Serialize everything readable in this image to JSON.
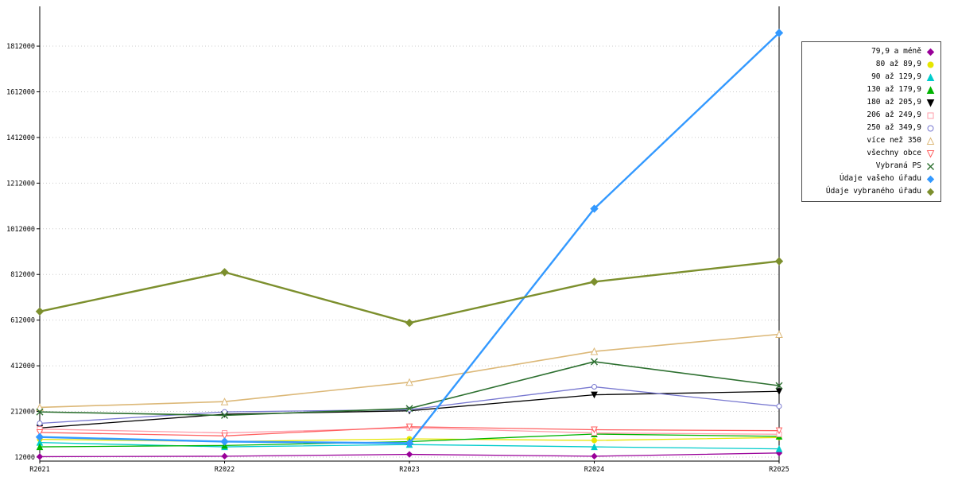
{
  "chart_data": {
    "type": "line",
    "title": "",
    "xlabel": "",
    "ylabel": "",
    "categories": [
      "R2021",
      "R2022",
      "R2023",
      "R2024",
      "R2025"
    ],
    "yticks": [
      12000,
      212000,
      412000,
      612000,
      812000,
      1012000,
      1212000,
      1412000,
      1612000,
      1812000
    ],
    "ylim": [
      12000,
      1986000
    ],
    "grid": "dotted-horizontal",
    "legend_position": "right",
    "series": [
      {
        "name": "79,9 a méně",
        "color": "#990099",
        "marker": "diamond",
        "fill": "filled",
        "line_width": 1.3,
        "marker_size": 3.5,
        "values": [
          14000,
          16000,
          24000,
          16000,
          30000
        ]
      },
      {
        "name": "80 až 89,9",
        "color": "#e6e600",
        "marker": "circle",
        "fill": "filled",
        "line_width": 1.3,
        "marker_size": 3.5,
        "values": [
          90000,
          80000,
          92000,
          85000,
          98000
        ]
      },
      {
        "name": "90 až 129,9",
        "color": "#00cccc",
        "marker": "triangle-up",
        "fill": "filled",
        "line_width": 1.3,
        "marker_size": 3.5,
        "values": [
          76000,
          57000,
          67000,
          57000,
          48000
        ]
      },
      {
        "name": "130 až 179,9",
        "color": "#00b300",
        "marker": "triangle-up",
        "fill": "filled",
        "line_width": 1.3,
        "marker_size": 3.5,
        "values": [
          57000,
          63000,
          80000,
          113000,
          103000
        ]
      },
      {
        "name": "180 až 205,9",
        "color": "#000000",
        "marker": "triangle-down",
        "fill": "filled",
        "line_width": 1.3,
        "marker_size": 3.5,
        "values": [
          140000,
          200000,
          215000,
          285000,
          300000
        ]
      },
      {
        "name": "206 až 249,9",
        "color": "#ff9daa",
        "marker": "square",
        "fill": "open",
        "line_width": 1.3,
        "marker_size": 3.5,
        "values": [
          135000,
          118000,
          140000,
          118000,
          112000
        ]
      },
      {
        "name": "250 až 349,9",
        "color": "#7878d0",
        "marker": "circle",
        "fill": "open",
        "line_width": 1.3,
        "marker_size": 3.5,
        "values": [
          160000,
          210000,
          220000,
          320000,
          235000
        ]
      },
      {
        "name": "více než 350",
        "color": "#dcb878",
        "marker": "triangle-up",
        "fill": "open",
        "line_width": 1.6,
        "marker_size": 4,
        "values": [
          230000,
          255000,
          340000,
          475000,
          550000
        ]
      },
      {
        "name": "všechny obce",
        "color": "#ff6060",
        "marker": "triangle-down",
        "fill": "open",
        "line_width": 1.3,
        "marker_size": 3.5,
        "values": [
          120000,
          105000,
          145000,
          132000,
          128000
        ]
      },
      {
        "name": "Vybraná PS",
        "color": "#2d7030",
        "marker": "x",
        "fill": "line",
        "line_width": 1.6,
        "marker_size": 4,
        "values": [
          210000,
          195000,
          225000,
          430000,
          325000
        ]
      },
      {
        "name": "Údaje vašeho úřadu",
        "color": "#3399ff",
        "marker": "diamond",
        "fill": "filled",
        "line_width": 2.4,
        "marker_size": 4.5,
        "values": [
          100000,
          80000,
          73000,
          1100000,
          1870000
        ]
      },
      {
        "name": "Údaje vybraného úřadu",
        "color": "#7c8f2d",
        "marker": "diamond",
        "fill": "filled",
        "line_width": 2.4,
        "marker_size": 4.5,
        "values": [
          650000,
          822000,
          600000,
          780000,
          870000
        ]
      }
    ],
    "axis_color": "#000000",
    "grid_color": "#cccccc"
  }
}
